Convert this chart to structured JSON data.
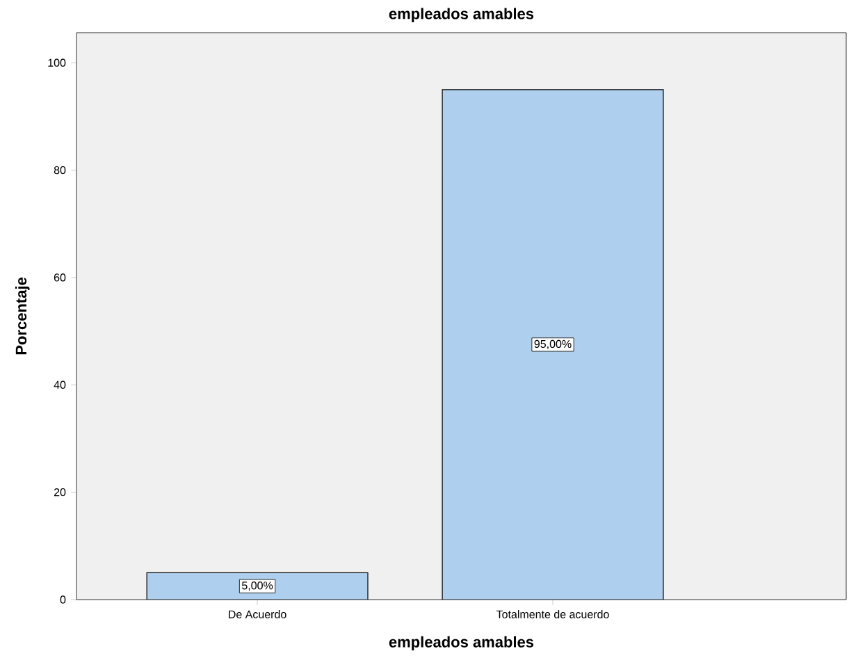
{
  "chart_data": {
    "type": "bar",
    "title": "empleados amables",
    "xlabel": "empleados amables",
    "ylabel": "Porcentaje",
    "categories": [
      "De Acuerdo",
      "Totalmente de acuerdo"
    ],
    "values": [
      5,
      95
    ],
    "color": "#aecfed",
    "value_labels": [
      "5,00%",
      "95,00%"
    ],
    "ylim": [
      0,
      105.6
    ],
    "yticks": [
      0,
      20,
      40,
      60,
      80,
      100
    ]
  }
}
